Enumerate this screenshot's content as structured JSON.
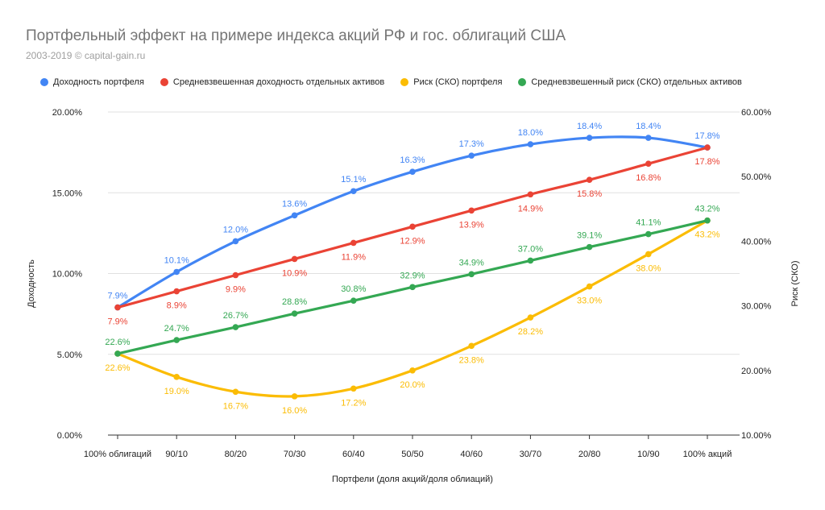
{
  "chart_data": {
    "type": "line",
    "title": "Портфельный эффект на примере индекса акций РФ и гос. облигаций США",
    "subtitle": "2003-2019 © capital-gain.ru",
    "xlabel": "Портфели (доля акций/доля облиаций)",
    "ylabel_left": "Доходность",
    "ylabel_right": "Риск (СКО)",
    "categories": [
      "100% облигаций",
      "90/10",
      "80/20",
      "70/30",
      "60/40",
      "50/50",
      "40/60",
      "30/70",
      "20/80",
      "10/90",
      "100% акций"
    ],
    "ylim_left": [
      0,
      20
    ],
    "ylim_right": [
      10,
      60
    ],
    "yticks_left": [
      "0.00%",
      "5.00%",
      "10.00%",
      "15.00%",
      "20.00%"
    ],
    "yticks_right": [
      "10.00%",
      "20.00%",
      "30.00%",
      "40.00%",
      "50.00%",
      "60.00%"
    ],
    "grid": true,
    "legend_position": "top-left",
    "series": [
      {
        "name": "Доходность портфеля",
        "axis": "left",
        "color": "#4285F4",
        "label_position": "above",
        "values": [
          7.9,
          10.1,
          12.0,
          13.6,
          15.1,
          16.3,
          17.3,
          18.0,
          18.4,
          18.4,
          17.8
        ],
        "labels": [
          "7.9%",
          "10.1%",
          "12.0%",
          "13.6%",
          "15.1%",
          "16.3%",
          "17.3%",
          "18.0%",
          "18.4%",
          "18.4%",
          "17.8%"
        ]
      },
      {
        "name": "Средневзвешенная доходность отдельных активов",
        "axis": "left",
        "color": "#EA4335",
        "label_position": "below",
        "values": [
          7.9,
          8.9,
          9.9,
          10.9,
          11.9,
          12.9,
          13.9,
          14.9,
          15.8,
          16.8,
          17.8
        ],
        "labels": [
          "7.9%",
          "8.9%",
          "9.9%",
          "10.9%",
          "11.9%",
          "12.9%",
          "13.9%",
          "14.9%",
          "15.8%",
          "16.8%",
          "17.8%"
        ]
      },
      {
        "name": "Риск (СКО) портфеля",
        "axis": "right",
        "color": "#FBBC04",
        "label_position": "below",
        "values": [
          22.6,
          19.0,
          16.7,
          16.0,
          17.2,
          20.0,
          23.8,
          28.2,
          33.0,
          38.0,
          43.2
        ],
        "labels": [
          "22.6%",
          "19.0%",
          "16.7%",
          "16.0%",
          "17.2%",
          "20.0%",
          "23.8%",
          "28.2%",
          "33.0%",
          "38.0%",
          "43.2%"
        ]
      },
      {
        "name": "Средневзвешенный риск (СКО) отдельных активов",
        "axis": "right",
        "color": "#34A853",
        "label_position": "above",
        "values": [
          22.6,
          24.7,
          26.7,
          28.8,
          30.8,
          32.9,
          34.9,
          37.0,
          39.1,
          41.1,
          43.2
        ],
        "labels": [
          "22.6%",
          "24.7%",
          "26.7%",
          "28.8%",
          "30.8%",
          "32.9%",
          "34.9%",
          "37.0%",
          "39.1%",
          "41.1%",
          "43.2%"
        ]
      }
    ]
  }
}
